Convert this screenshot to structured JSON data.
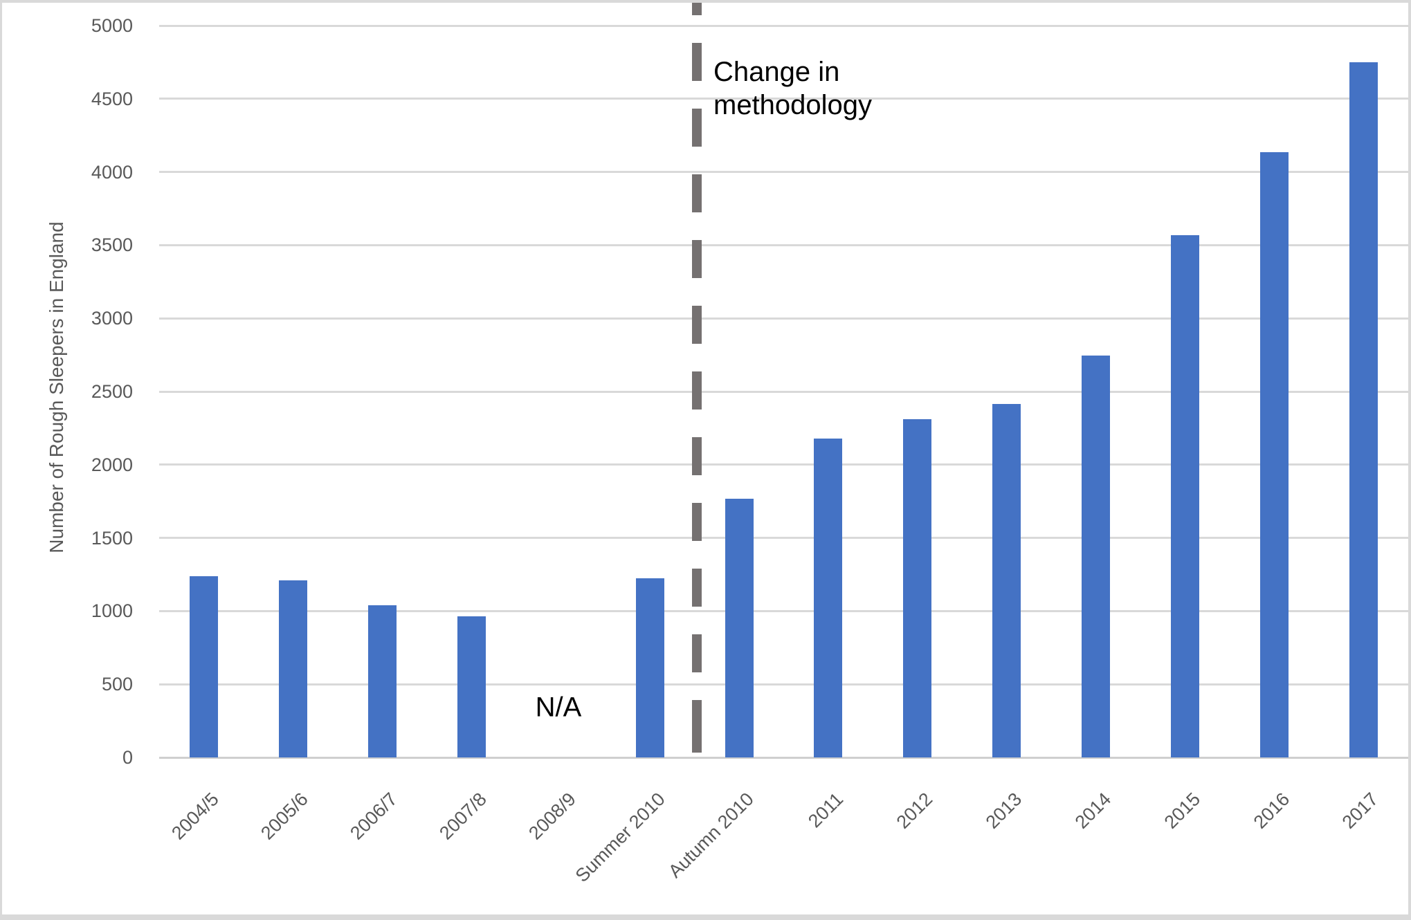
{
  "chart_data": {
    "type": "bar",
    "title": "",
    "xlabel": "",
    "ylabel": "Number of Rough Sleepers in England",
    "categories": [
      "2004/5",
      "2005/6",
      "2006/7",
      "2007/8",
      "2008/9",
      "Summer 2010",
      "Autumn 2010",
      "2011",
      "2012",
      "2013",
      "2014",
      "2015",
      "2016",
      "2017"
    ],
    "values": [
      1240,
      1210,
      1040,
      965,
      null,
      1225,
      1768,
      2181,
      2309,
      2414,
      2744,
      3569,
      4134,
      4751
    ],
    "na_category": "2008/9",
    "na_label": "N/A",
    "annotation": "Change in\nmethodology",
    "annotation_position": "top of dashed divider between Summer 2010 and Autumn 2010",
    "ylim": [
      0,
      5000
    ],
    "yticks": [
      0,
      500,
      1000,
      1500,
      2000,
      2500,
      3000,
      3500,
      4000,
      4500,
      5000
    ],
    "grid": true,
    "legend": "none",
    "colors": {
      "bar": "#4472C4",
      "gridline": "#D9D9D9",
      "zero_axis_line": "#CFCFCF",
      "dashed_divider": "#757171",
      "axis_text": "#595959",
      "annotation_text": "#000000",
      "na_text": "#000000",
      "frame_border": "#D9D9D9"
    }
  }
}
